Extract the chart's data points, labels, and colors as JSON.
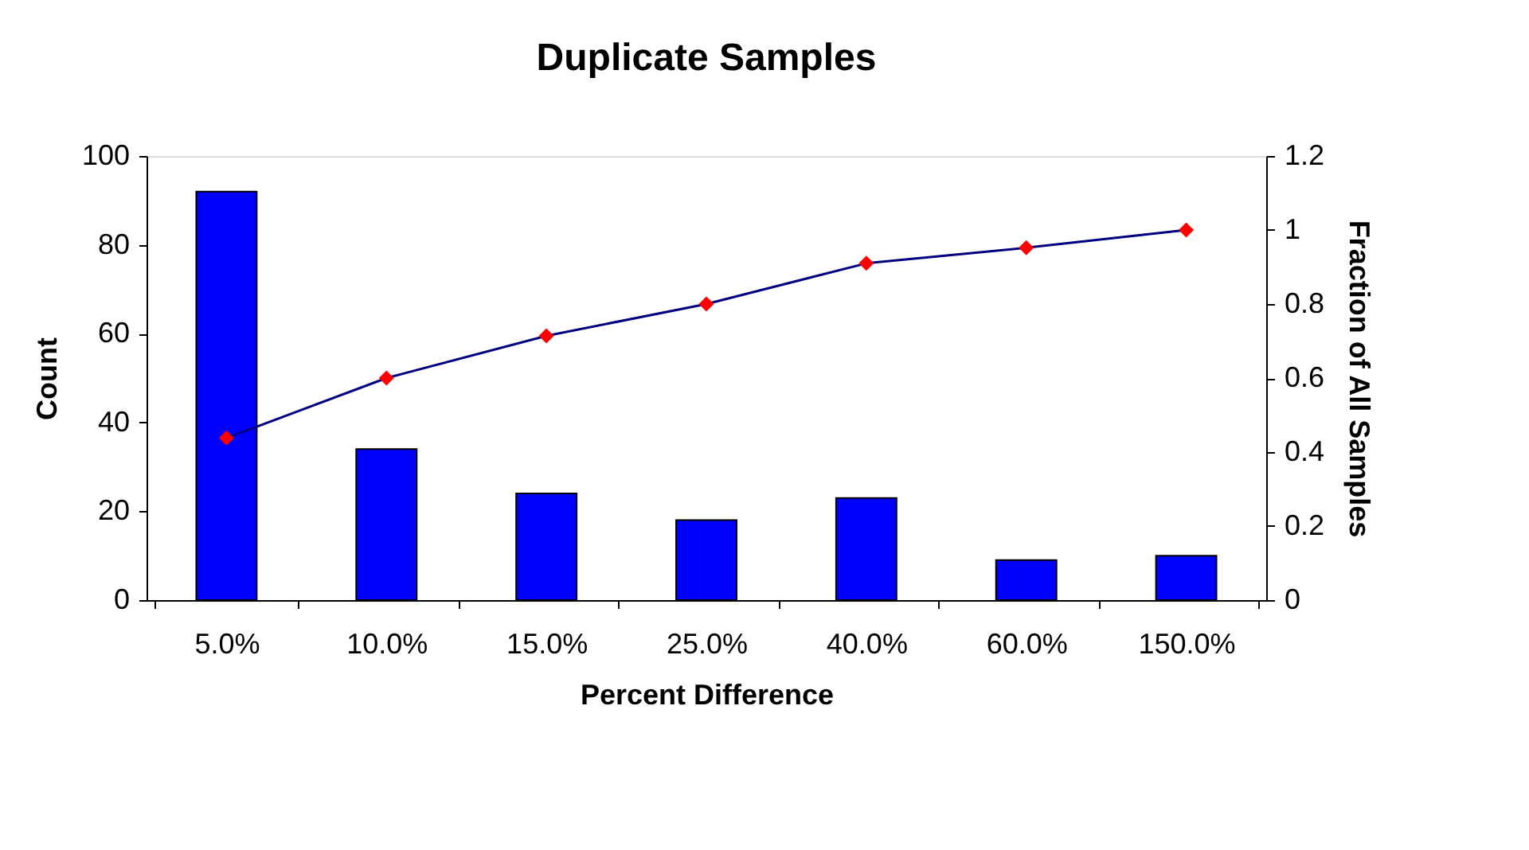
{
  "chart_data": {
    "type": "bar",
    "title": "Duplicate Samples",
    "xlabel": "Percent Difference",
    "ylabel": "Count",
    "y2label": "Fraction of All Samples",
    "categories": [
      "5.0%",
      "10.0%",
      "15.0%",
      "25.0%",
      "40.0%",
      "60.0%",
      "150.0%"
    ],
    "series": [
      {
        "color": "#0000ff",
        "values": [
          92,
          34,
          24,
          18,
          23,
          9,
          10
        ]
      },
      {
        "type": "line",
        "axis": "y2",
        "color": "#000080",
        "colors": [
          "#ff0000",
          "#ff0000",
          "#ff0000",
          "#ff0000",
          "#ff0000",
          "#ff0000",
          "#ff0000"
        ],
        "marker": "diamond",
        "values": [
          0.438,
          0.6,
          0.714,
          0.8,
          0.91,
          0.952,
          1.0
        ]
      }
    ],
    "ylim": [
      0,
      100
    ],
    "yticks": [
      0,
      20,
      40,
      60,
      80,
      100
    ],
    "y2lim": [
      0,
      1.2
    ],
    "y2ticks": [
      0,
      0.2,
      0.4,
      0.6,
      0.8,
      1,
      1.2
    ]
  }
}
